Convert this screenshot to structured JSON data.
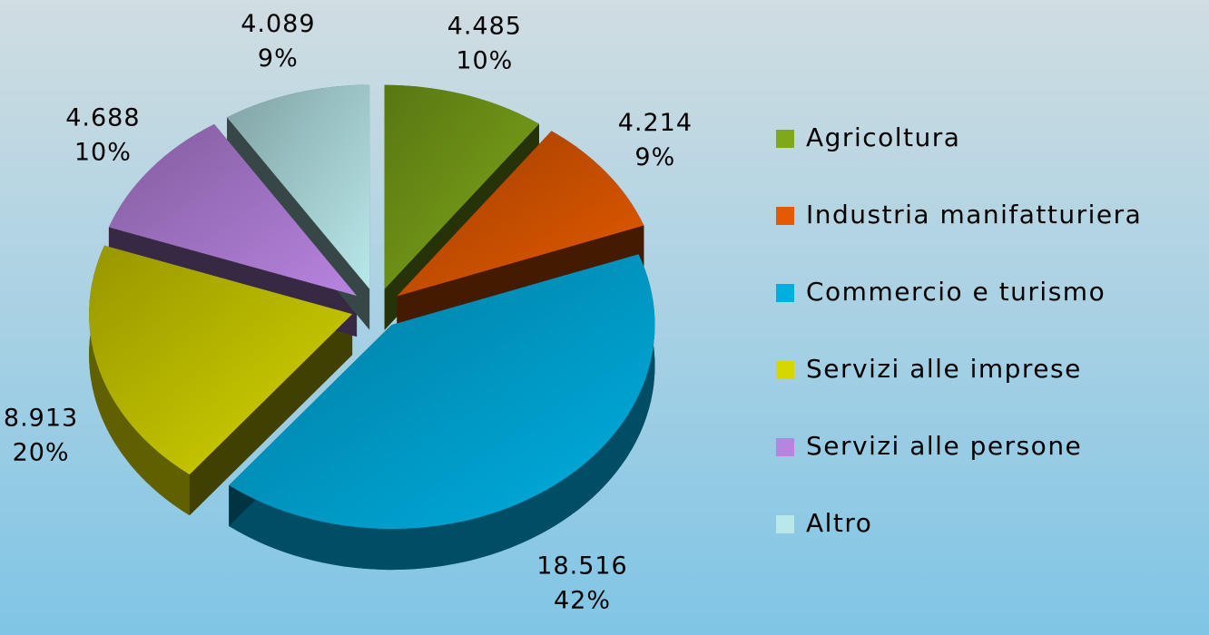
{
  "chart_data": {
    "type": "pie",
    "categories": [
      "Agricoltura",
      "Industria manifatturiera",
      "Commercio e turismo",
      "Servizi alle imprese",
      "Servizi alle persone",
      "Altro"
    ],
    "values": [
      4485,
      4214,
      18516,
      8913,
      4688,
      4089
    ],
    "value_labels": [
      "4.485",
      "4.214",
      "18.516",
      "8.913",
      "4.688",
      "4.089"
    ],
    "percentages": [
      10,
      9,
      42,
      20,
      10,
      9
    ],
    "percentage_labels": [
      "10%",
      "9%",
      "42%",
      "20%",
      "10%",
      "9%"
    ],
    "colors": [
      "#7fa81a",
      "#e45a00",
      "#00aee0",
      "#d6d600",
      "#b884e0",
      "#b8e8ea"
    ],
    "legend": "right"
  }
}
